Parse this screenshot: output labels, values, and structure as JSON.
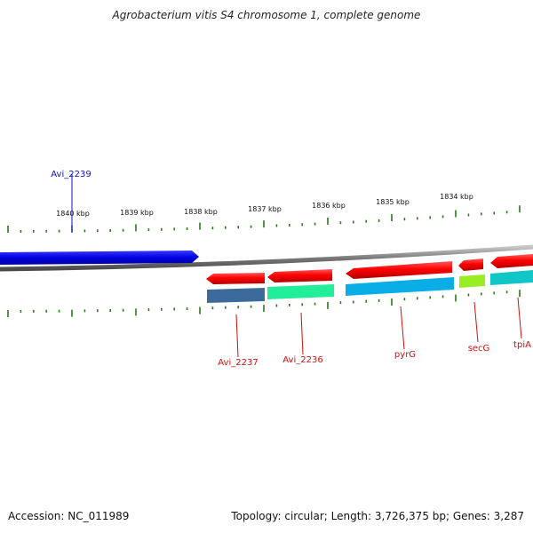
{
  "title": "Agrobacterium vitis S4 chromosome 1, complete genome",
  "footer": {
    "accession": "Accession: NC_011989",
    "summary": "Topology: circular; Length: 3,726,375 bp; Genes: 3,287"
  },
  "ticks": [
    "1840 kbp",
    "1839 kbp",
    "1838 kbp",
    "1837 kbp",
    "1836 kbp",
    "1835 kbp",
    "1834 kbp"
  ],
  "genes_top": [
    {
      "name": "Avi_2239",
      "color": "#1010e0"
    }
  ],
  "genes_bottom": [
    {
      "name": "Avi_2237",
      "color": "#dd1111"
    },
    {
      "name": "Avi_2236",
      "color": "#dd1111"
    },
    {
      "name": "pyrG",
      "color": "#dd1111"
    },
    {
      "name": "secG",
      "color": "#dd1111"
    },
    {
      "name": "tpiA",
      "color": "#dd1111"
    }
  ],
  "colors": {
    "forward_gene": "#0a0ae6",
    "reverse_gene": "#ff0000",
    "backbone": "#808080",
    "tick": "#2a7a1a",
    "label_blue": "#1010c0",
    "label_red": "#cc1111"
  }
}
